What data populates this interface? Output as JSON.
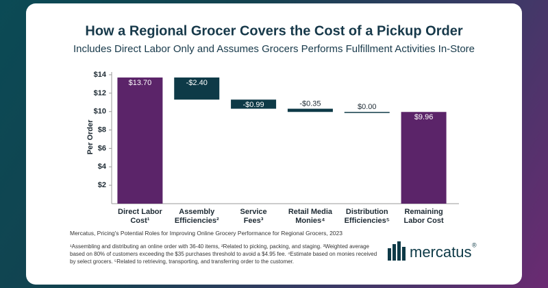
{
  "chart_data": {
    "type": "waterfall",
    "title": "How a Regional Grocer Covers the Cost of a Pickup Order",
    "subtitle": "Includes Direct Labor Only and Assumes Grocers Performs Fulfillment Activities In-Store",
    "y_label": "Per Order",
    "categories": [
      "Direct Labor\nCost¹",
      "Assembly\nEfficiencies²",
      "Service\nFees³",
      "Retail Media\nMonies⁴",
      "Distribution\nEfficiencies⁵",
      "Remaining\nLabor Cost"
    ],
    "values": [
      13.7,
      -2.4,
      -0.99,
      -0.35,
      0.0,
      9.96
    ],
    "value_labels": [
      "$13.70",
      "-$2.40",
      "-$0.99",
      "-$0.35",
      "$0.00",
      "$9.96"
    ],
    "total_color": "#5b2469",
    "change_color": "#0e3a47",
    "ylim": [
      0,
      14
    ],
    "yticks": [
      {
        "value": 2,
        "label": "$2"
      },
      {
        "value": 4,
        "label": "$4"
      },
      {
        "value": 6,
        "label": "$6"
      },
      {
        "value": 8,
        "label": "$8"
      },
      {
        "value": 10,
        "label": "$10"
      },
      {
        "value": 12,
        "label": "$12"
      },
      {
        "value": 14,
        "label": "$14"
      }
    ],
    "source": "Mercatus, Pricing's Potential Roles for Improving Online Grocery Performance for Regional Grocers, 2023",
    "footnotes": "¹Assembling and distributing an online order with 36-40 items, ²Related to picking, packing, and staging. ³Weighted average based on 80% of customers exceeding the $35 purchases threshold to avoid a $4.95 fee. ⁴Estimate based on monies received by select grocers. ⁵Related to retrieving, transporting, and transferring order to the customer.",
    "logo": "mercatus",
    "logo_mark": "®"
  }
}
